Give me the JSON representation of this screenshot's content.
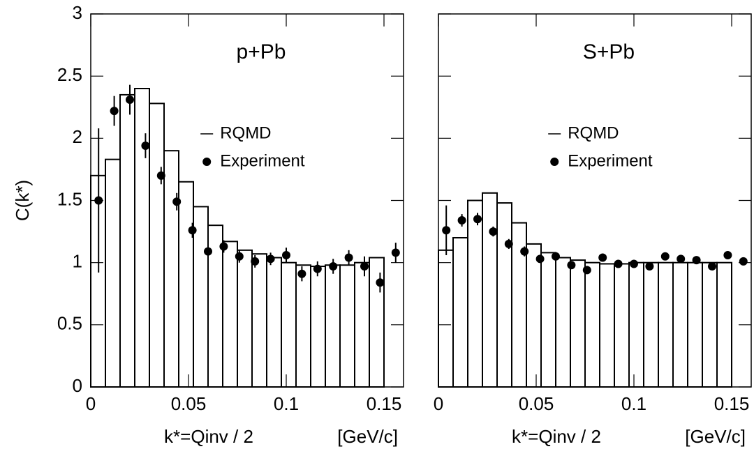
{
  "chart_data": [
    {
      "type": "step",
      "title": "p+Pb",
      "x_label": "k*=Qinv / 2",
      "x_unit": "[GeV/c]",
      "y_label": "C(k*)",
      "xlim": [
        0,
        0.16
      ],
      "ylim": [
        0,
        3
      ],
      "xticks": [
        0,
        0.05,
        0.1,
        0.15
      ],
      "yticks": [
        0,
        0.5,
        1,
        1.5,
        2,
        2.5,
        3
      ],
      "show_ytick_labels": true,
      "series": [
        {
          "name": "RQMD",
          "color": "#000000",
          "bins": [
            0,
            0.0075,
            0.015,
            0.0225,
            0.03,
            0.0375,
            0.045,
            0.0525,
            0.06,
            0.0675,
            0.075,
            0.0825,
            0.09,
            0.0975,
            0.105,
            0.1125,
            0.12,
            0.1275,
            0.135,
            0.1425,
            0.15
          ],
          "values": [
            1.7,
            1.83,
            2.35,
            2.4,
            2.28,
            1.9,
            1.65,
            1.45,
            1.3,
            1.17,
            1.1,
            1.07,
            1.04,
            1.0,
            0.98,
            0.97,
            0.98,
            0.98,
            1.0,
            1.04
          ]
        },
        {
          "name": "Experiment",
          "color": "#000000",
          "x": [
            0.004,
            0.012,
            0.02,
            0.028,
            0.036,
            0.044,
            0.052,
            0.06,
            0.068,
            0.076,
            0.084,
            0.092,
            0.1,
            0.108,
            0.116,
            0.124,
            0.132,
            0.14,
            0.148,
            0.156
          ],
          "values": [
            1.5,
            2.22,
            2.31,
            1.94,
            1.7,
            1.49,
            1.26,
            1.09,
            1.13,
            1.05,
            1.01,
            1.03,
            1.06,
            0.91,
            0.95,
            0.97,
            1.04,
            0.97,
            0.84,
            1.08
          ],
          "errors": [
            0.58,
            0.12,
            0.12,
            0.1,
            0.07,
            0.07,
            0.06,
            0.06,
            0.05,
            0.05,
            0.05,
            0.05,
            0.06,
            0.06,
            0.06,
            0.06,
            0.06,
            0.08,
            0.08,
            0.08
          ]
        }
      ]
    },
    {
      "type": "step",
      "title": "S+Pb",
      "x_label": "k*=Qinv / 2",
      "x_unit": "[GeV/c]",
      "xlim": [
        0,
        0.16
      ],
      "ylim": [
        0,
        3
      ],
      "xticks": [
        0,
        0.05,
        0.1,
        0.15
      ],
      "yticks": [
        0,
        0.5,
        1,
        1.5,
        2,
        2.5,
        3
      ],
      "show_ytick_labels": false,
      "series": [
        {
          "name": "RQMD",
          "color": "#000000",
          "bins": [
            0,
            0.0075,
            0.015,
            0.0225,
            0.03,
            0.0375,
            0.045,
            0.0525,
            0.06,
            0.0675,
            0.075,
            0.0825,
            0.09,
            0.0975,
            0.105,
            0.1125,
            0.12,
            0.1275,
            0.135,
            0.1425,
            0.15
          ],
          "values": [
            1.1,
            1.2,
            1.5,
            1.56,
            1.48,
            1.32,
            1.15,
            1.08,
            1.04,
            1.02,
            1.0,
            0.99,
            0.99,
            1.0,
            1.0,
            1.0,
            1.0,
            1.0,
            1.0,
            1.0
          ]
        },
        {
          "name": "Experiment",
          "color": "#000000",
          "x": [
            0.004,
            0.012,
            0.02,
            0.028,
            0.036,
            0.044,
            0.052,
            0.06,
            0.068,
            0.076,
            0.084,
            0.092,
            0.1,
            0.108,
            0.116,
            0.124,
            0.132,
            0.14,
            0.148,
            0.156
          ],
          "values": [
            1.26,
            1.34,
            1.35,
            1.25,
            1.15,
            1.09,
            1.03,
            1.05,
            0.98,
            0.94,
            1.04,
            0.99,
            0.99,
            0.97,
            1.05,
            1.03,
            1.02,
            0.97,
            1.06,
            1.01
          ],
          "errors": [
            0.2,
            0.05,
            0.05,
            0.04,
            0.04,
            0.04,
            0.03,
            0.03,
            0.03,
            0.03,
            0.03,
            0.03,
            0.03,
            0.03,
            0.03,
            0.03,
            0.03,
            0.03,
            0.03,
            0.03
          ]
        }
      ]
    }
  ]
}
